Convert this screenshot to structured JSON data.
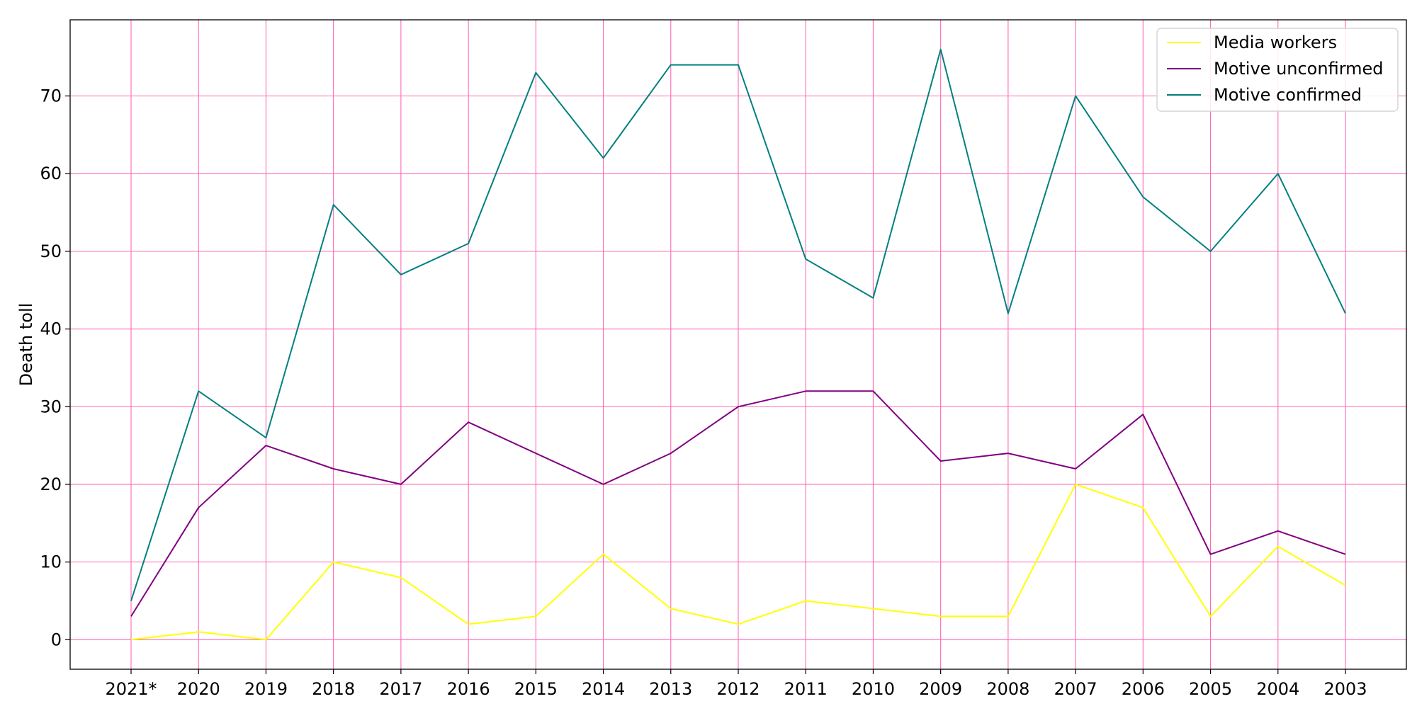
{
  "chart_data": {
    "type": "line",
    "title": "",
    "xlabel": "",
    "ylabel": "Death toll",
    "categories": [
      "2021*",
      "2020",
      "2019",
      "2018",
      "2017",
      "2016",
      "2015",
      "2014",
      "2013",
      "2012",
      "2011",
      "2010",
      "2009",
      "2008",
      "2007",
      "2006",
      "2005",
      "2004",
      "2003"
    ],
    "ylim": [
      -3.8,
      79.8
    ],
    "yticks": [
      0,
      10,
      20,
      30,
      40,
      50,
      60,
      70
    ],
    "grid": true,
    "grid_color": "#ff69b4",
    "legend_position": "top-right",
    "series": [
      {
        "name": "Media workers",
        "color": "#ffff00",
        "values": [
          0,
          1,
          0,
          10,
          8,
          2,
          3,
          11,
          4,
          2,
          5,
          4,
          3,
          3,
          20,
          17,
          3,
          12,
          7
        ]
      },
      {
        "name": "Motive unconfirmed",
        "color": "#800080",
        "values": [
          3,
          17,
          25,
          22,
          20,
          28,
          24,
          20,
          24,
          30,
          32,
          32,
          23,
          24,
          22,
          29,
          11,
          14,
          11
        ]
      },
      {
        "name": "Motive confirmed",
        "color": "#008080",
        "values": [
          5,
          32,
          26,
          56,
          47,
          51,
          73,
          62,
          74,
          74,
          49,
          44,
          76,
          42,
          70,
          57,
          50,
          60,
          42
        ]
      }
    ]
  }
}
